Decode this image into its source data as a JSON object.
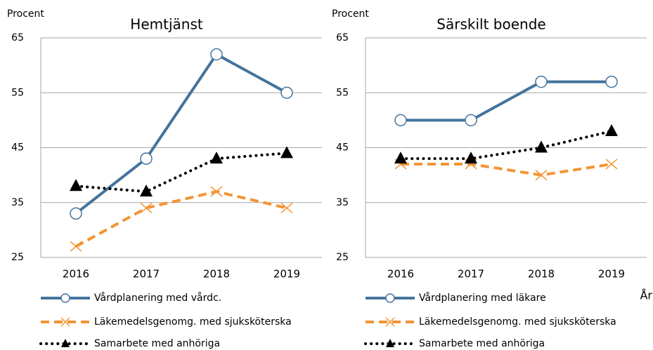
{
  "chart_data": [
    {
      "type": "line",
      "title": "Hemtjänst",
      "ylabel": "Procent",
      "categories": [
        "2016",
        "2017",
        "2018",
        "2019"
      ],
      "series": [
        {
          "name": "Vårdplanering med vårdc.",
          "color": "#44739c",
          "linestyle": "solid",
          "marker": "circle",
          "values": [
            33,
            43,
            62,
            55
          ]
        },
        {
          "name": "Läkemedelsgenomg. med sjuksköterska",
          "color": "#f39433",
          "linestyle": "dashed",
          "marker": "x",
          "values": [
            27,
            34,
            37,
            34
          ]
        },
        {
          "name": "Samarbete med anhöriga",
          "color": "#000000",
          "linestyle": "dotted",
          "marker": "triangle",
          "values": [
            38,
            37,
            43,
            44
          ]
        }
      ],
      "ylim": [
        25,
        65
      ],
      "yticks": [
        25,
        35,
        45,
        55,
        65
      ],
      "grid": true
    },
    {
      "type": "line",
      "title": "Särskilt boende",
      "ylabel": "Procent",
      "xlabel": "År",
      "categories": [
        "2016",
        "2017",
        "2018",
        "2019"
      ],
      "series": [
        {
          "name": "Vårdplanering med läkare",
          "color": "#44739c",
          "linestyle": "solid",
          "marker": "circle",
          "values": [
            50,
            50,
            57,
            57
          ]
        },
        {
          "name": "Läkemedelsgenomg. med sjuksköterska",
          "color": "#f39433",
          "linestyle": "dashed",
          "marker": "x",
          "values": [
            42,
            42,
            40,
            42
          ]
        },
        {
          "name": "Samarbete med anhöriga",
          "color": "#000000",
          "linestyle": "dotted",
          "marker": "triangle",
          "values": [
            43,
            43,
            45,
            48
          ]
        }
      ],
      "ylim": [
        25,
        65
      ],
      "yticks": [
        25,
        35,
        45,
        55,
        65
      ],
      "grid": true
    }
  ]
}
